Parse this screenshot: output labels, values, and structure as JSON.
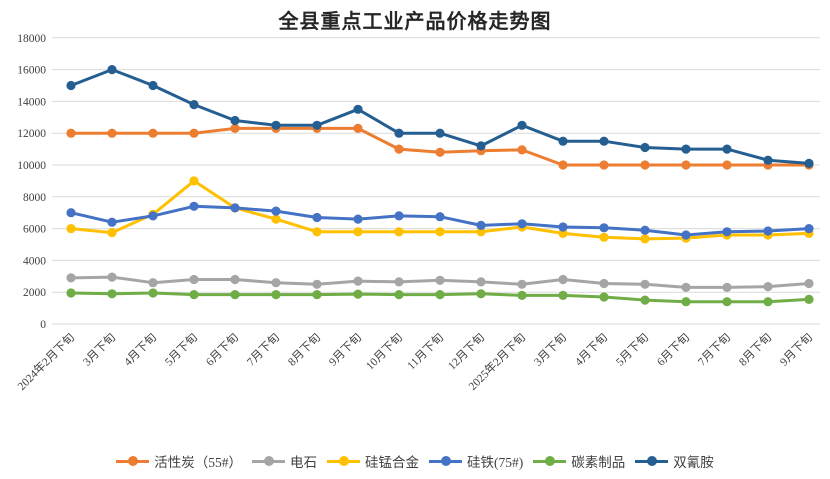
{
  "title": "全县重点工业产品价格走势图",
  "colors": {
    "background": "#ffffff",
    "gridline": "#d9d9d9",
    "axis_text": "#404040",
    "title_text": "#262626"
  },
  "chart_data": {
    "type": "line",
    "title": "全县重点工业产品价格走势图",
    "xlabel": "",
    "ylabel": "",
    "ylim": [
      0,
      18000
    ],
    "ytick_step": 2000,
    "yticks": [
      0,
      2000,
      4000,
      6000,
      8000,
      10000,
      12000,
      14000,
      16000,
      18000
    ],
    "grid": true,
    "legend_position": "bottom",
    "marker": "circle",
    "categories": [
      "2024年2月下旬",
      "3月下旬",
      "4月下旬",
      "5月下旬",
      "6月下旬",
      "7月下旬",
      "8月下旬",
      "9月下旬",
      "10月下旬",
      "11月下旬",
      "12月下旬",
      "2025年2月下旬",
      "3月下旬",
      "4月下旬",
      "5月下旬",
      "6月下旬",
      "7月下旬",
      "8月下旬",
      "9月下旬"
    ],
    "series": [
      {
        "name": "活性炭（55#）",
        "color": "#ED7D31",
        "values": [
          12000,
          12000,
          12000,
          12000,
          12300,
          12300,
          12300,
          12300,
          11000,
          10800,
          10900,
          10950,
          10000,
          10000,
          10000,
          10000,
          10000,
          10000,
          10000
        ]
      },
      {
        "name": "电石",
        "color": "#A5A5A5",
        "values": [
          2900,
          2950,
          2600,
          2800,
          2800,
          2600,
          2500,
          2700,
          2650,
          2750,
          2650,
          2500,
          2800,
          2550,
          2500,
          2300,
          2300,
          2350,
          2550
        ]
      },
      {
        "name": "硅锰合金",
        "color": "#FFC000",
        "values": [
          6000,
          5750,
          6900,
          9000,
          7300,
          6600,
          5800,
          5800,
          5800,
          5800,
          5800,
          6100,
          5700,
          5450,
          5350,
          5400,
          5600,
          5600,
          5700
        ]
      },
      {
        "name": "硅铁(75#)",
        "color": "#4472C4",
        "values": [
          7000,
          6400,
          6800,
          7400,
          7300,
          7100,
          6700,
          6600,
          6800,
          6750,
          6200,
          6300,
          6100,
          6050,
          5900,
          5600,
          5800,
          5850,
          6000
        ]
      },
      {
        "name": "碳素制品",
        "color": "#70AD47",
        "values": [
          1950,
          1900,
          1950,
          1850,
          1850,
          1850,
          1850,
          1880,
          1850,
          1850,
          1900,
          1800,
          1800,
          1700,
          1500,
          1400,
          1400,
          1400,
          1550
        ]
      },
      {
        "name": "双氰胺",
        "color": "#255E91",
        "values": [
          15000,
          16000,
          15000,
          13800,
          12800,
          12500,
          12500,
          13500,
          12000,
          12000,
          11200,
          12500,
          11500,
          11500,
          11100,
          11000,
          11000,
          10300,
          10100
        ]
      }
    ]
  }
}
